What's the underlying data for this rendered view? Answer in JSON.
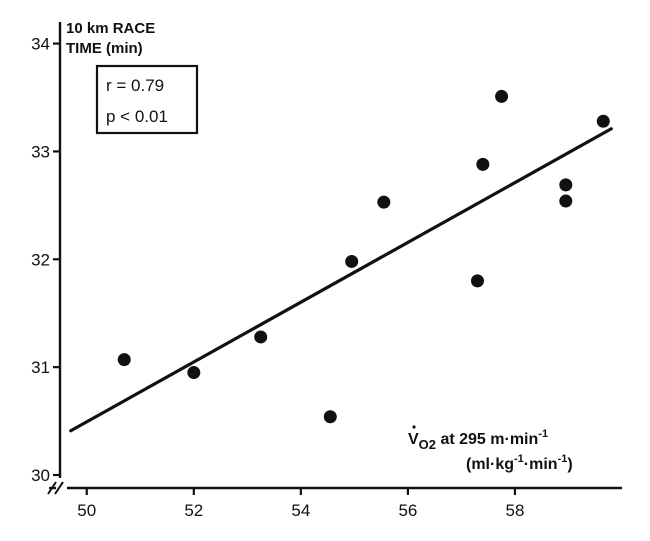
{
  "chart_data": {
    "type": "scatter",
    "title": "10 km RACE TIME (min)",
    "title_lines": [
      "10 km RACE",
      "TIME (min)"
    ],
    "xlabel_line1_main": "V",
    "xlabel_line1_sub": "O2",
    "xlabel_line1_rest": " at 295 m·min",
    "xlabel_line1_sup": "-1",
    "xlabel_line2_a": "(ml·kg",
    "xlabel_line2_sup1": "-1",
    "xlabel_line2_b": "·min",
    "xlabel_line2_sup2": "-1",
    "xlabel_line2_c": ")",
    "stats": {
      "r": "r  =  0.79",
      "p": "p  <  0.01"
    },
    "xlim": [
      49.5,
      60
    ],
    "ylim": [
      30,
      34.2
    ],
    "xticks": [
      50,
      52,
      54,
      56,
      58
    ],
    "yticks": [
      30,
      31,
      32,
      33,
      34
    ],
    "points": [
      {
        "x": 50.7,
        "y": 31.07
      },
      {
        "x": 52.0,
        "y": 30.95
      },
      {
        "x": 53.25,
        "y": 31.28
      },
      {
        "x": 54.55,
        "y": 30.54
      },
      {
        "x": 54.95,
        "y": 31.98
      },
      {
        "x": 55.55,
        "y": 32.53
      },
      {
        "x": 57.3,
        "y": 31.8
      },
      {
        "x": 57.4,
        "y": 32.88
      },
      {
        "x": 57.75,
        "y": 33.51
      },
      {
        "x": 58.95,
        "y": 32.69
      },
      {
        "x": 58.95,
        "y": 32.54
      },
      {
        "x": 59.65,
        "y": 33.28
      }
    ],
    "regression": {
      "x1": 49.7,
      "y1": 30.41,
      "x2": 59.8,
      "y2": 33.21
    },
    "grid": false,
    "legend": "none"
  }
}
